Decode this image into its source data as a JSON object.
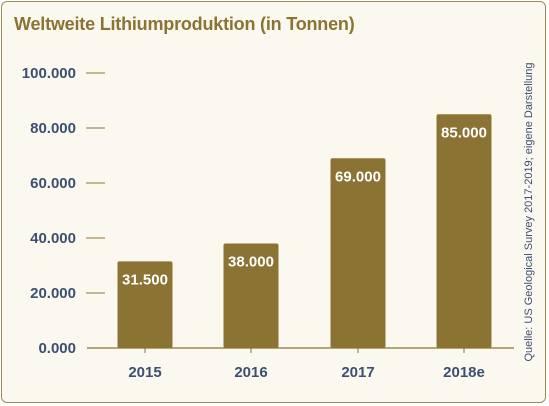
{
  "title": "Weltweite Lithiumproduktion (in Tonnen)",
  "source": "Quelle: US Geological Survey 2017-2019; eigene Darstellung",
  "colors": {
    "bar": "#8b7334",
    "axis": "#8b7334",
    "text": "#3d4f71",
    "title": "#8b7334",
    "background": "#fbf9ef"
  },
  "chart_data": {
    "type": "bar",
    "title": "Weltweite Lithiumproduktion (in Tonnen)",
    "xlabel": "",
    "ylabel": "",
    "categories": [
      "2015",
      "2016",
      "2017",
      "2018e"
    ],
    "values": [
      31500,
      38000,
      69000,
      85000
    ],
    "value_labels": [
      "31.500",
      "38.000",
      "69.000",
      "85.000"
    ],
    "ylim": [
      0,
      100000
    ],
    "yticks": [
      0,
      20000,
      40000,
      60000,
      80000,
      100000
    ],
    "ytick_labels": [
      "0.000",
      "20.000",
      "40.000",
      "60.000",
      "80.000",
      "100.000"
    ],
    "grid": false,
    "legend": "none"
  }
}
